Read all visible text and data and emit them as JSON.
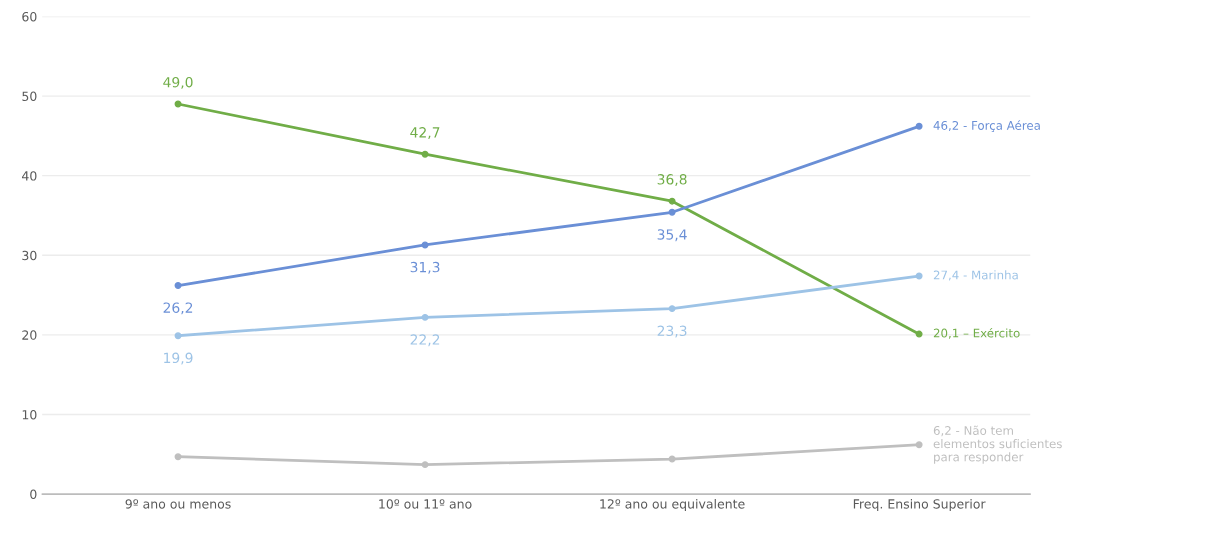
{
  "chart_data": {
    "type": "line",
    "categories": [
      "9º ano ou menos",
      "10º ou 11º ano",
      "12º ano ou equivalente",
      "Freq. Ensino Superior"
    ],
    "ylim": [
      0,
      60
    ],
    "yticks": [
      0,
      10,
      20,
      30,
      40,
      50,
      60
    ],
    "grid": "y",
    "marker": "circle",
    "line_style": "solid",
    "series": [
      {
        "color": "#70ad47",
        "values": [
          49.0,
          42.7,
          36.8,
          20.1
        ],
        "value_labels": [
          "49,0",
          "42,7",
          "36,8",
          "20,1 – Exército"
        ]
      },
      {
        "color": "#6a8fd6",
        "values": [
          26.2,
          31.3,
          35.4,
          46.2
        ],
        "value_labels": [
          "26,2",
          "31,3",
          "35,4",
          "46,2 - Força Aérea"
        ]
      },
      {
        "color": "#9dc3e6",
        "values": [
          19.9,
          22.2,
          23.3,
          27.4
        ],
        "value_labels": [
          "19,9",
          "22,2",
          "23,3",
          "27,4 - Marinha"
        ]
      },
      {
        "color": "#bfbfbf",
        "values": [
          4.7,
          3.7,
          4.4,
          6.2
        ],
        "value_labels": [
          null,
          null,
          null,
          "6,2 - Não tem\nelementos suficientes\npara responder"
        ]
      }
    ]
  }
}
